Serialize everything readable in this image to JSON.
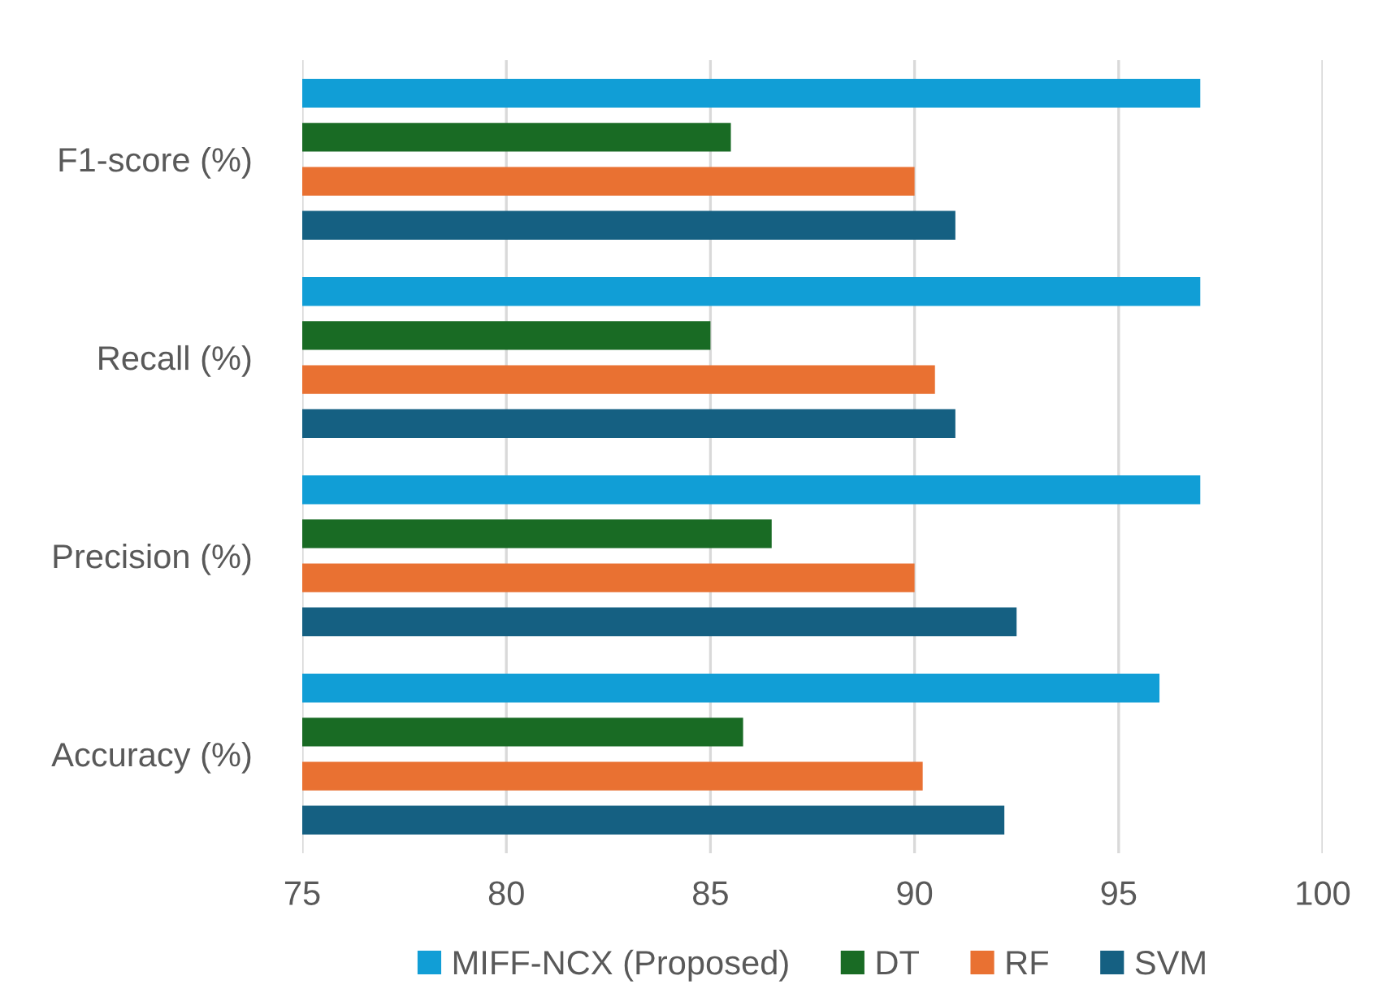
{
  "chart_data": {
    "type": "bar",
    "orientation": "horizontal",
    "categories": [
      "F1-score (%)",
      "Recall (%)",
      "Precision (%)",
      "Accuracy (%)"
    ],
    "series": [
      {
        "name": "MIFF-NCX (Proposed)",
        "color": "#119ed6",
        "values": [
          97,
          97,
          97,
          96
        ]
      },
      {
        "name": "DT",
        "color": "#196b24",
        "values": [
          85.5,
          85,
          86.5,
          85.8
        ]
      },
      {
        "name": "RF",
        "color": "#e97132",
        "values": [
          90,
          90.5,
          90,
          90.2
        ]
      },
      {
        "name": "SVM",
        "color": "#156082",
        "values": [
          91,
          91,
          92.5,
          92.2
        ]
      }
    ],
    "xlim": [
      75,
      100
    ],
    "xticks": [
      75,
      80,
      85,
      90,
      95,
      100
    ],
    "grid": "x",
    "legend": "bottom"
  }
}
